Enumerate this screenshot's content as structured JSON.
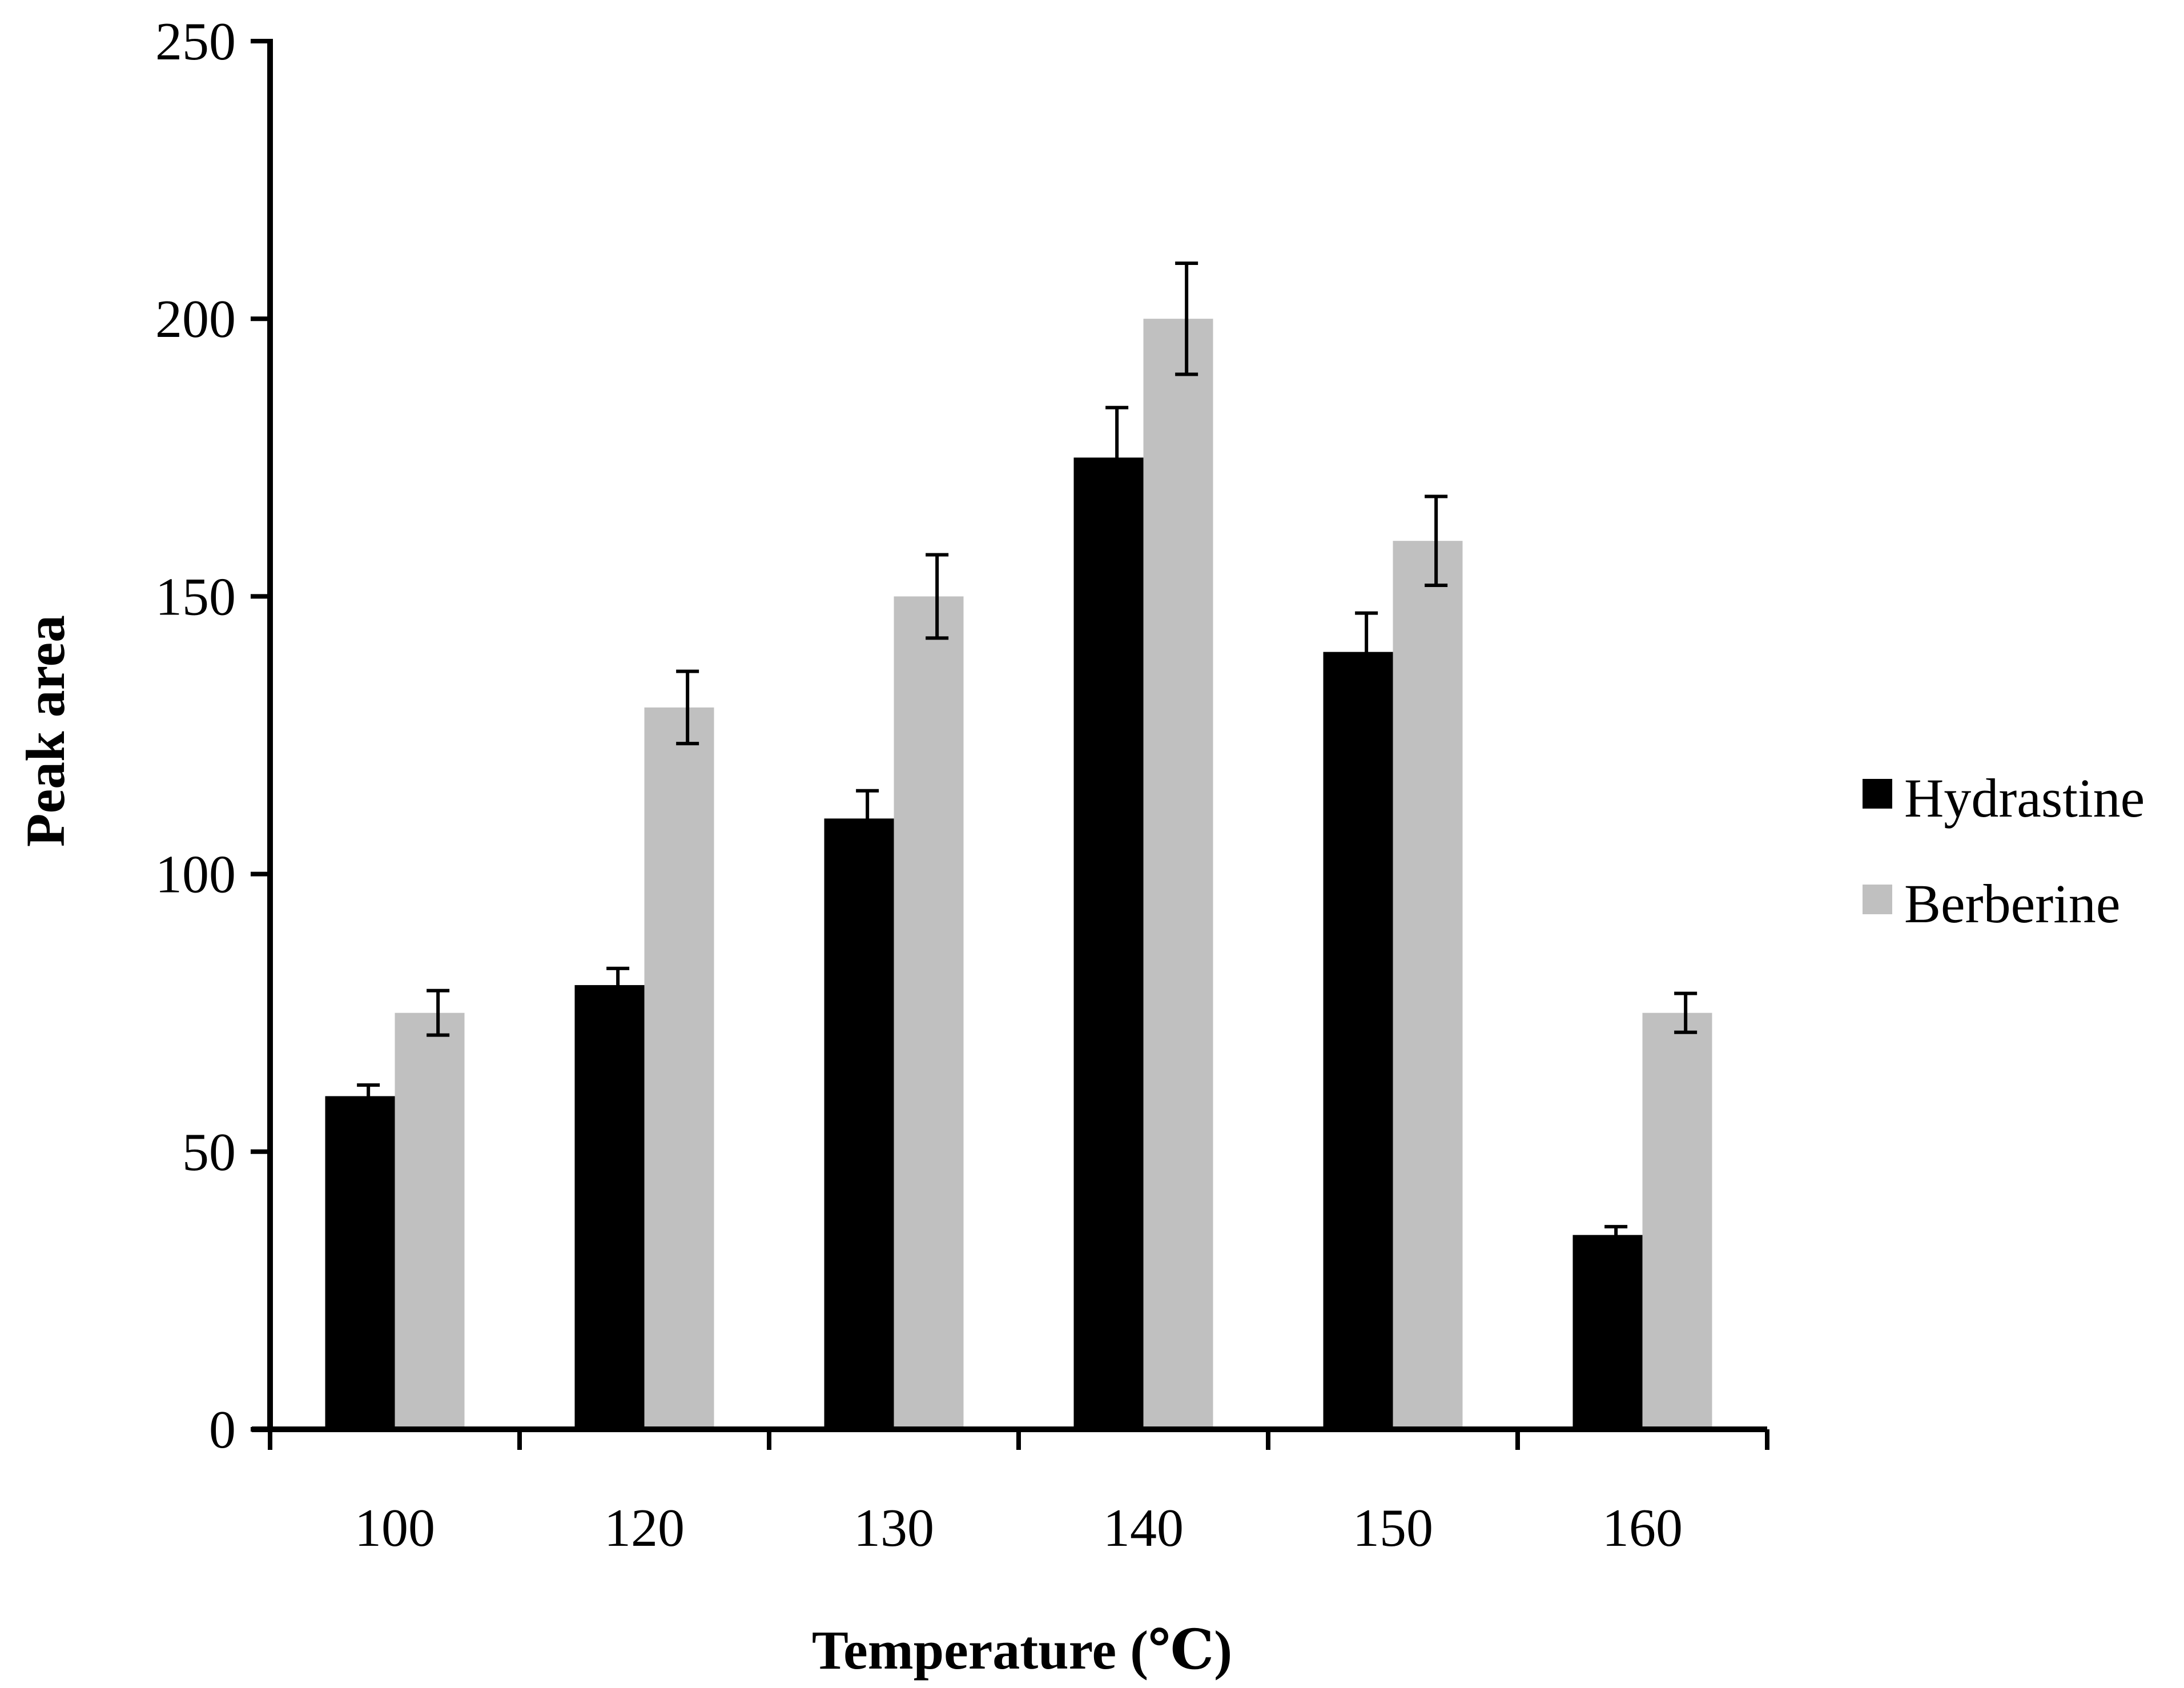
{
  "chart_data": {
    "type": "bar",
    "title": "",
    "xlabel": "Temperature (℃)",
    "ylabel": "Peak area",
    "categories": [
      "100",
      "120",
      "130",
      "140",
      "150",
      "160"
    ],
    "series": [
      {
        "name": "Hydrastine",
        "color": "#000000",
        "values": [
          60,
          80,
          110,
          175,
          140,
          35
        ],
        "errors": [
          2,
          3,
          5,
          9,
          7,
          1.5
        ]
      },
      {
        "name": "Berberine",
        "color": "#c0c0c0",
        "values": [
          75,
          130,
          150,
          200,
          160,
          75
        ],
        "errors": [
          4,
          6.5,
          7.5,
          10,
          8,
          3.5
        ]
      }
    ],
    "ylim": [
      0,
      250
    ],
    "yticks": [
      "0",
      "50",
      "100",
      "150",
      "200",
      "250"
    ],
    "grid": false,
    "legend_position": "right"
  }
}
